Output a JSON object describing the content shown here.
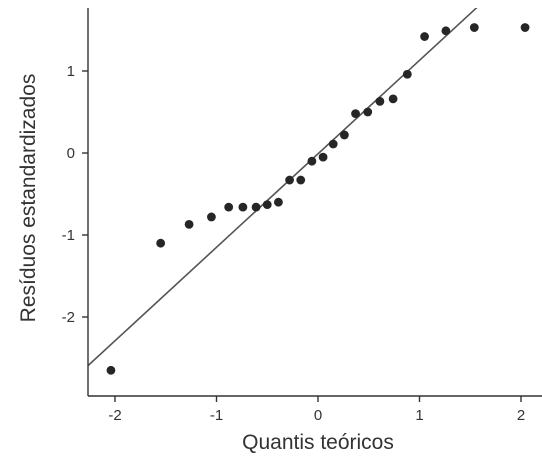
{
  "chart_data": {
    "type": "scatter",
    "title": "",
    "xlabel": "Quantis teóricos",
    "ylabel": "Resíduos estandardizados",
    "xlim": [
      -2.1,
      2.1
    ],
    "ylim": [
      -2.75,
      1.75
    ],
    "x_ticks": [
      -2,
      -1,
      0,
      1,
      2
    ],
    "x_tick_labels": [
      "-2",
      "-1",
      "0",
      "1",
      "2"
    ],
    "y_ticks": [
      -2,
      -1,
      0,
      1
    ],
    "y_tick_labels": [
      "-2",
      "-1",
      "0",
      "1"
    ],
    "grid": false,
    "colors": {
      "points": "#262626",
      "line": "#555555",
      "axis": "#333333"
    },
    "reference_line": {
      "slope": 1.14,
      "intercept": -0.01
    },
    "points": [
      {
        "x": -2.04,
        "y": -2.65
      },
      {
        "x": -1.55,
        "y": -1.1
      },
      {
        "x": -1.27,
        "y": -0.87
      },
      {
        "x": -1.05,
        "y": -0.78
      },
      {
        "x": -0.88,
        "y": -0.66
      },
      {
        "x": -0.74,
        "y": -0.66
      },
      {
        "x": -0.61,
        "y": -0.66
      },
      {
        "x": -0.5,
        "y": -0.63
      },
      {
        "x": -0.39,
        "y": -0.6
      },
      {
        "x": -0.28,
        "y": -0.33
      },
      {
        "x": -0.17,
        "y": -0.33
      },
      {
        "x": -0.06,
        "y": -0.1
      },
      {
        "x": 0.05,
        "y": -0.05
      },
      {
        "x": 0.15,
        "y": 0.11
      },
      {
        "x": 0.26,
        "y": 0.22
      },
      {
        "x": 0.37,
        "y": 0.48
      },
      {
        "x": 0.49,
        "y": 0.5
      },
      {
        "x": 0.61,
        "y": 0.63
      },
      {
        "x": 0.74,
        "y": 0.66
      },
      {
        "x": 0.88,
        "y": 0.96
      },
      {
        "x": 1.05,
        "y": 1.42
      },
      {
        "x": 1.26,
        "y": 1.49
      },
      {
        "x": 1.54,
        "y": 1.53
      },
      {
        "x": 2.04,
        "y": 1.53
      }
    ]
  }
}
